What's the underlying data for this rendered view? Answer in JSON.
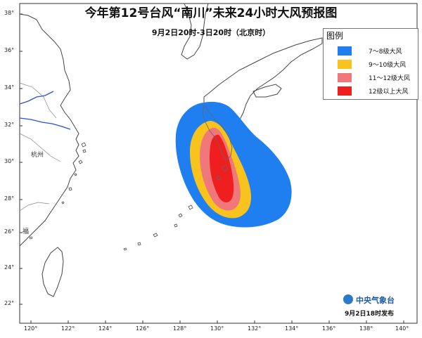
{
  "title": "今年第12号台风“南川”未来24小时大风预报图",
  "subtitle": "9月2日20时-3日20时（北京时）",
  "legend": {
    "title": "图例",
    "items": [
      {
        "label": "7～8级大风",
        "color": "#1f7ff0"
      },
      {
        "label": "9～10级大风",
        "color": "#f7c31c"
      },
      {
        "label": "11～12级大风",
        "color": "#f0787a"
      },
      {
        "label": "12级以上大风",
        "color": "#f01f1f"
      }
    ]
  },
  "axes": {
    "lon_ticks": [
      "120°",
      "122°",
      "124°",
      "126°",
      "128°",
      "130°",
      "132°",
      "134°",
      "136°",
      "138°",
      "140°"
    ],
    "lat_ticks": [
      "38°",
      "36°",
      "34°",
      "32°",
      "30°",
      "28°",
      "26°",
      "24°",
      "22°"
    ]
  },
  "map": {
    "city_label": "杭州",
    "city_label_2": "福"
  },
  "footer": {
    "agency": "中央气象台",
    "release_time": "9月2日18时发布"
  }
}
